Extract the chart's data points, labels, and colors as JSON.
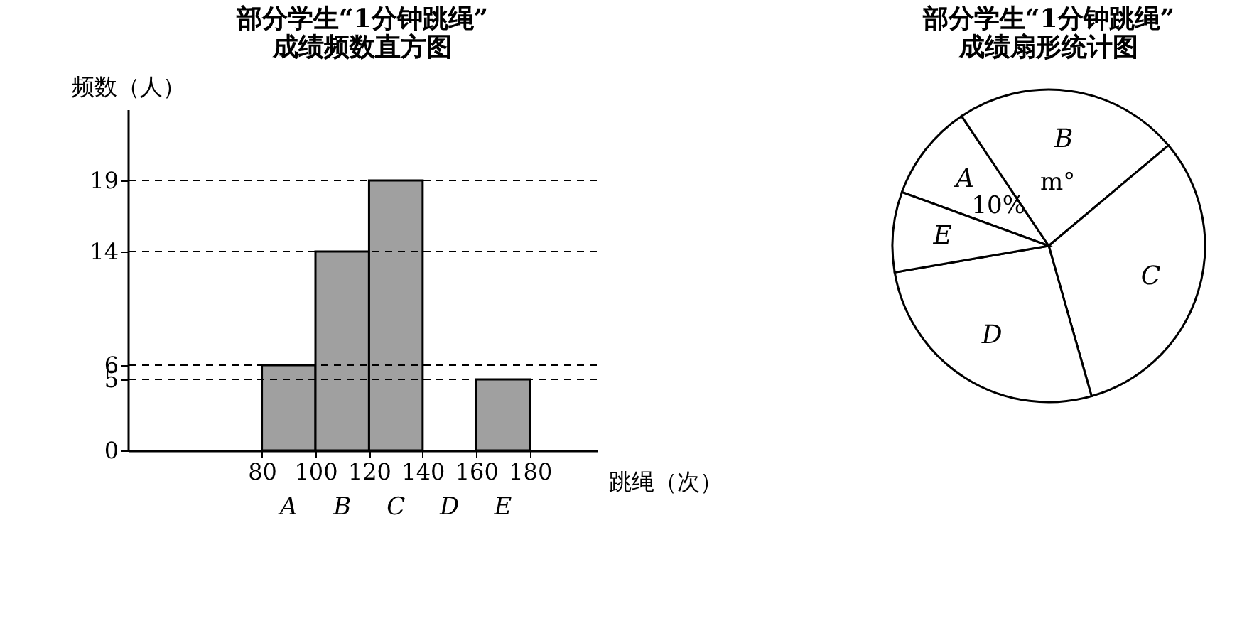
{
  "chart_data": [
    {
      "type": "histogram",
      "title": "部分学生“1分钟跳绳”\n成绩频数直方图",
      "xlabel": "跳绳（次）",
      "ylabel": "频数（人）",
      "bins": [
        80,
        100,
        120,
        140,
        160,
        180
      ],
      "values": [
        6,
        14,
        19,
        null,
        5
      ],
      "color": "#a0a0a0",
      "xlim": [
        30,
        205
      ],
      "xticks": [
        80,
        100,
        120,
        140,
        160,
        180
      ],
      "ylim": [
        0,
        24
      ],
      "yticks": [
        0,
        5,
        6,
        14,
        19
      ],
      "ref_lines": [
        {
          "axis": "y",
          "value": 19,
          "line_style": "dashed"
        },
        {
          "axis": "y",
          "value": 14,
          "line_style": "dashed"
        },
        {
          "axis": "y",
          "value": 6,
          "line_style": "dashed"
        },
        {
          "axis": "y",
          "value": 5,
          "line_style": "dashed"
        }
      ],
      "annotations": [
        "A",
        "B",
        "C",
        "D",
        "E"
      ],
      "grid": false
    },
    {
      "type": "pie",
      "title": "部分学生“1分钟跳绳”\n成绩扇形统计图",
      "categories": [
        "A",
        "B",
        "C",
        "D",
        "E"
      ],
      "values": [
        10,
        23.3,
        31.7,
        26.7,
        8.3
      ],
      "colors": [
        "#ffffff",
        "#ffffff",
        "#ffffff",
        "#ffffff",
        "#ffffff"
      ],
      "value_labels": [
        "10%",
        "m°",
        null,
        null,
        null
      ]
    }
  ]
}
